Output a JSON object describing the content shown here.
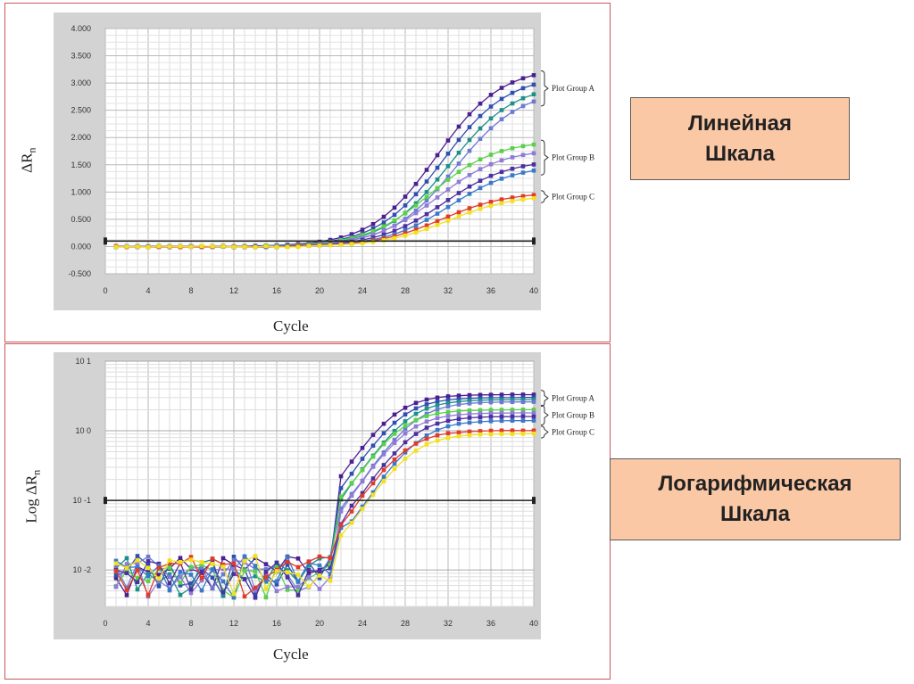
{
  "callouts": {
    "linear": {
      "line1": "Линейная",
      "line2": "Шкала"
    },
    "log": {
      "line1": "Логарифмическая",
      "line2": "Шкала"
    }
  },
  "colors": {
    "frame": "#c9565a",
    "plot_bg": "#d3d3d3",
    "callout_bg": "#fbc8a6",
    "threshold": "#222222",
    "group_a": [
      "#4b1f8f",
      "#2f4fb0",
      "#1e8f88",
      "#6a7ad0"
    ],
    "group_b": [
      "#5ad04a",
      "#8f7ad8",
      "#4b2f9f",
      "#3a78c8"
    ],
    "group_c": [
      "#e03a2a",
      "#f0e020",
      "#f07a20"
    ]
  },
  "chart_data": [
    {
      "type": "line",
      "scale": "linear",
      "xlabel": "Cycle",
      "ylabel_main": "ΔR",
      "ylabel_sub": "n",
      "xlim": [
        0,
        40
      ],
      "ylim": [
        -0.5,
        4.0
      ],
      "xticks": [
        "0",
        "4",
        "8",
        "12",
        "16",
        "20",
        "24",
        "28",
        "32",
        "36",
        "40"
      ],
      "yticks": [
        "4.000",
        "3.500",
        "3.000",
        "2.500",
        "2.000",
        "1.500",
        "1.000",
        "0.500",
        "0.000",
        "-0.500"
      ],
      "threshold": 0.1,
      "grid": true,
      "groups": [
        {
          "name": "Plot Group A",
          "plateaus": [
            3.3,
            3.15,
            3.0,
            2.9
          ],
          "midpoint": 31.5
        },
        {
          "name": "Plot Group B",
          "plateaus": [
            1.95,
            1.8,
            1.6,
            1.5
          ],
          "midpoint": 31.0
        },
        {
          "name": "Plot Group C",
          "plateaus": [
            1.0,
            0.95
          ],
          "midpoint": 32.0
        }
      ]
    },
    {
      "type": "line",
      "scale": "log",
      "xlabel": "Cycle",
      "ylabel_main": "Log ΔR",
      "ylabel_sub": "n",
      "xlim": [
        0,
        40
      ],
      "ylim": [
        0.003,
        10
      ],
      "xticks": [
        "0",
        "4",
        "8",
        "12",
        "16",
        "20",
        "24",
        "28",
        "32",
        "36",
        "40"
      ],
      "yticks": [
        "10^1",
        "10^0",
        "10^-1",
        "10^-2"
      ],
      "threshold": 0.1,
      "grid": true,
      "groups": [
        {
          "name": "Plot Group A",
          "plateaus": [
            3.3,
            3.0,
            2.8,
            2.6
          ],
          "midpoint": 29.0
        },
        {
          "name": "Plot Group B",
          "plateaus": [
            2.0,
            1.8,
            1.6,
            1.4
          ],
          "midpoint": 29.5
        },
        {
          "name": "Plot Group C",
          "plateaus": [
            1.0,
            0.9
          ],
          "midpoint": 30.0
        }
      ]
    }
  ]
}
